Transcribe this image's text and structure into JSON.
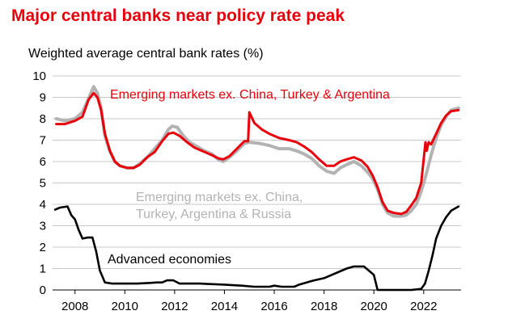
{
  "title": "Major central banks near policy rate peak",
  "subtitle": "Weighted average central bank rates (%)",
  "colors": {
    "title": "#e8000b",
    "em_ex_cta": "#e8000b",
    "em_ex_ctar": "#b3b3b3",
    "advanced": "#000000",
    "grid": "#c8c8c8"
  },
  "chart_data": {
    "type": "line",
    "title": "Major central banks near policy rate peak",
    "ylabel": "Weighted average central bank rates (%)",
    "xlabel": "",
    "xlim": [
      2007.1,
      2023.5
    ],
    "ylim": [
      0,
      10
    ],
    "yticks": [
      0,
      1,
      2,
      3,
      4,
      5,
      6,
      7,
      8,
      9,
      10
    ],
    "xticks": [
      2008,
      2010,
      2012,
      2014,
      2016,
      2018,
      2020,
      2022
    ],
    "grid": "horizontal",
    "legend": "none (series labelled directly on chart)",
    "series": [
      {
        "name": "Emerging markets ex. China, Turkey, Argentina & Russia",
        "label_lines": [
          "Emerging markets ex. China,",
          "Turkey, Argentina & Russia"
        ],
        "color": "#b3b3b3",
        "points": [
          [
            2007.25,
            8.0
          ],
          [
            2007.6,
            7.9
          ],
          [
            2008.0,
            8.0
          ],
          [
            2008.3,
            8.3
          ],
          [
            2008.6,
            9.1
          ],
          [
            2008.75,
            9.5
          ],
          [
            2008.9,
            9.2
          ],
          [
            2009.05,
            8.5
          ],
          [
            2009.2,
            7.2
          ],
          [
            2009.4,
            6.5
          ],
          [
            2009.6,
            6.0
          ],
          [
            2009.8,
            5.8
          ],
          [
            2010.1,
            5.7
          ],
          [
            2010.35,
            5.7
          ],
          [
            2010.6,
            5.9
          ],
          [
            2010.9,
            6.2
          ],
          [
            2011.2,
            6.6
          ],
          [
            2011.5,
            7.0
          ],
          [
            2011.75,
            7.5
          ],
          [
            2011.9,
            7.65
          ],
          [
            2012.1,
            7.6
          ],
          [
            2012.35,
            7.2
          ],
          [
            2012.6,
            6.9
          ],
          [
            2012.9,
            6.7
          ],
          [
            2013.2,
            6.5
          ],
          [
            2013.5,
            6.35
          ],
          [
            2013.75,
            6.1
          ],
          [
            2013.95,
            6.0
          ],
          [
            2014.2,
            6.2
          ],
          [
            2014.5,
            6.5
          ],
          [
            2014.8,
            6.85
          ],
          [
            2015.0,
            6.9
          ],
          [
            2015.4,
            6.85
          ],
          [
            2015.8,
            6.75
          ],
          [
            2016.2,
            6.6
          ],
          [
            2016.6,
            6.6
          ],
          [
            2016.9,
            6.5
          ],
          [
            2017.2,
            6.35
          ],
          [
            2017.5,
            6.15
          ],
          [
            2017.8,
            5.8
          ],
          [
            2018.1,
            5.55
          ],
          [
            2018.4,
            5.45
          ],
          [
            2018.65,
            5.7
          ],
          [
            2018.9,
            5.85
          ],
          [
            2019.2,
            6.0
          ],
          [
            2019.5,
            5.8
          ],
          [
            2019.75,
            5.5
          ],
          [
            2019.95,
            5.2
          ],
          [
            2020.15,
            4.7
          ],
          [
            2020.35,
            4.0
          ],
          [
            2020.55,
            3.6
          ],
          [
            2020.8,
            3.45
          ],
          [
            2021.1,
            3.45
          ],
          [
            2021.3,
            3.5
          ],
          [
            2021.5,
            3.7
          ],
          [
            2021.7,
            4.0
          ],
          [
            2021.9,
            4.6
          ],
          [
            2022.1,
            5.4
          ],
          [
            2022.3,
            6.3
          ],
          [
            2022.5,
            7.1
          ],
          [
            2022.7,
            7.7
          ],
          [
            2022.9,
            8.1
          ],
          [
            2023.1,
            8.4
          ],
          [
            2023.4,
            8.5
          ]
        ]
      },
      {
        "name": "Emerging markets ex. China, Turkey & Argentina",
        "color": "#e8000b",
        "points": [
          [
            2007.25,
            7.75
          ],
          [
            2007.6,
            7.75
          ],
          [
            2008.0,
            7.9
          ],
          [
            2008.3,
            8.1
          ],
          [
            2008.55,
            8.9
          ],
          [
            2008.75,
            9.2
          ],
          [
            2008.9,
            9.0
          ],
          [
            2009.05,
            8.4
          ],
          [
            2009.2,
            7.3
          ],
          [
            2009.4,
            6.5
          ],
          [
            2009.6,
            6.0
          ],
          [
            2009.8,
            5.8
          ],
          [
            2010.1,
            5.7
          ],
          [
            2010.35,
            5.7
          ],
          [
            2010.6,
            5.85
          ],
          [
            2010.9,
            6.2
          ],
          [
            2011.2,
            6.45
          ],
          [
            2011.5,
            6.95
          ],
          [
            2011.75,
            7.3
          ],
          [
            2011.95,
            7.35
          ],
          [
            2012.2,
            7.2
          ],
          [
            2012.5,
            6.9
          ],
          [
            2012.8,
            6.65
          ],
          [
            2013.2,
            6.45
          ],
          [
            2013.5,
            6.3
          ],
          [
            2013.75,
            6.15
          ],
          [
            2013.95,
            6.1
          ],
          [
            2014.2,
            6.25
          ],
          [
            2014.5,
            6.6
          ],
          [
            2014.8,
            6.95
          ],
          [
            2014.95,
            6.95
          ],
          [
            2015.0,
            8.3
          ],
          [
            2015.2,
            7.8
          ],
          [
            2015.5,
            7.5
          ],
          [
            2015.8,
            7.3
          ],
          [
            2016.2,
            7.1
          ],
          [
            2016.6,
            7.0
          ],
          [
            2016.9,
            6.9
          ],
          [
            2017.2,
            6.7
          ],
          [
            2017.5,
            6.45
          ],
          [
            2017.8,
            6.1
          ],
          [
            2018.1,
            5.8
          ],
          [
            2018.4,
            5.8
          ],
          [
            2018.65,
            6.0
          ],
          [
            2018.9,
            6.1
          ],
          [
            2019.2,
            6.2
          ],
          [
            2019.5,
            6.05
          ],
          [
            2019.75,
            5.75
          ],
          [
            2019.95,
            5.35
          ],
          [
            2020.15,
            4.8
          ],
          [
            2020.35,
            4.1
          ],
          [
            2020.55,
            3.7
          ],
          [
            2020.8,
            3.6
          ],
          [
            2021.1,
            3.55
          ],
          [
            2021.3,
            3.65
          ],
          [
            2021.5,
            3.95
          ],
          [
            2021.7,
            4.3
          ],
          [
            2021.9,
            5.0
          ],
          [
            2022.0,
            6.1
          ],
          [
            2022.07,
            6.9
          ],
          [
            2022.12,
            6.5
          ],
          [
            2022.2,
            6.9
          ],
          [
            2022.3,
            6.8
          ],
          [
            2022.5,
            7.3
          ],
          [
            2022.7,
            7.8
          ],
          [
            2022.9,
            8.15
          ],
          [
            2023.1,
            8.35
          ],
          [
            2023.4,
            8.4
          ]
        ]
      },
      {
        "name": "Advanced economies",
        "color": "#000000",
        "points": [
          [
            2007.2,
            3.75
          ],
          [
            2007.4,
            3.85
          ],
          [
            2007.7,
            3.9
          ],
          [
            2007.85,
            3.5
          ],
          [
            2008.0,
            3.3
          ],
          [
            2008.15,
            2.8
          ],
          [
            2008.3,
            2.4
          ],
          [
            2008.5,
            2.45
          ],
          [
            2008.7,
            2.45
          ],
          [
            2008.85,
            1.8
          ],
          [
            2009.0,
            0.9
          ],
          [
            2009.2,
            0.35
          ],
          [
            2009.5,
            0.3
          ],
          [
            2010.0,
            0.3
          ],
          [
            2010.5,
            0.3
          ],
          [
            2011.0,
            0.33
          ],
          [
            2011.3,
            0.35
          ],
          [
            2011.5,
            0.35
          ],
          [
            2011.7,
            0.45
          ],
          [
            2011.95,
            0.45
          ],
          [
            2012.2,
            0.3
          ],
          [
            2013.0,
            0.3
          ],
          [
            2014.0,
            0.25
          ],
          [
            2014.7,
            0.2
          ],
          [
            2015.2,
            0.15
          ],
          [
            2015.8,
            0.15
          ],
          [
            2016.0,
            0.2
          ],
          [
            2016.3,
            0.15
          ],
          [
            2016.8,
            0.15
          ],
          [
            2017.0,
            0.25
          ],
          [
            2017.3,
            0.35
          ],
          [
            2017.6,
            0.45
          ],
          [
            2018.0,
            0.55
          ],
          [
            2018.3,
            0.7
          ],
          [
            2018.6,
            0.85
          ],
          [
            2018.9,
            1.0
          ],
          [
            2019.2,
            1.1
          ],
          [
            2019.6,
            1.1
          ],
          [
            2019.8,
            0.9
          ],
          [
            2020.0,
            0.7
          ],
          [
            2020.15,
            0.0
          ],
          [
            2021.0,
            0.0
          ],
          [
            2021.5,
            0.0
          ],
          [
            2021.9,
            0.05
          ],
          [
            2022.05,
            0.3
          ],
          [
            2022.2,
            0.9
          ],
          [
            2022.35,
            1.6
          ],
          [
            2022.5,
            2.4
          ],
          [
            2022.7,
            3.0
          ],
          [
            2022.9,
            3.4
          ],
          [
            2023.1,
            3.7
          ],
          [
            2023.4,
            3.9
          ]
        ]
      }
    ]
  },
  "labels": {
    "em_ex_cta": "Emerging markets ex. China, Turkey & Argentina",
    "advanced": "Advanced economies"
  }
}
